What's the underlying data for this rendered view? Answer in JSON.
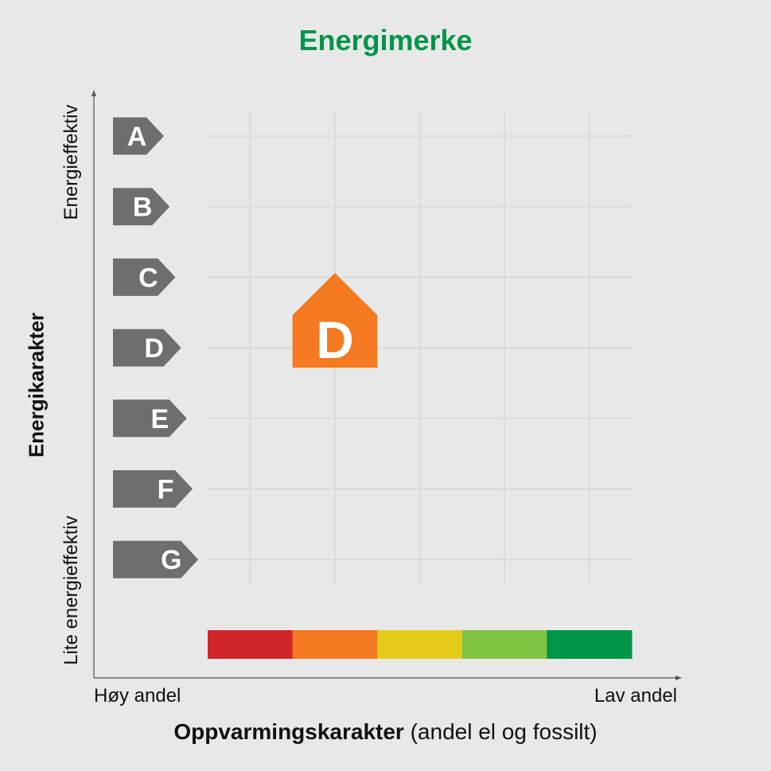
{
  "title": "Energimerke",
  "y_axis": {
    "title": "Energikarakter",
    "top_label": "Energieffektiv",
    "bottom_label": "Lite energieffektiv"
  },
  "x_axis": {
    "title_bold": "Oppvarmingskarakter",
    "title_rest": "(andel el og fossilt)",
    "left_label": "Høy andel",
    "right_label": "Lav andel"
  },
  "grades": [
    "A",
    "B",
    "C",
    "D",
    "E",
    "F",
    "G"
  ],
  "heating_scale_colors": [
    "#d0262b",
    "#f47920",
    "#e6cc1a",
    "#80c242",
    "#00964a"
  ],
  "current_rating": {
    "energy_grade": "D",
    "heating_color_index": 1,
    "color": "#f47920"
  },
  "colors": {
    "title": "#00964a",
    "grade_arrow": "#6d6e70",
    "grid": "#d0d0d2",
    "axis": "#555555",
    "background": "#e8e8e9"
  }
}
